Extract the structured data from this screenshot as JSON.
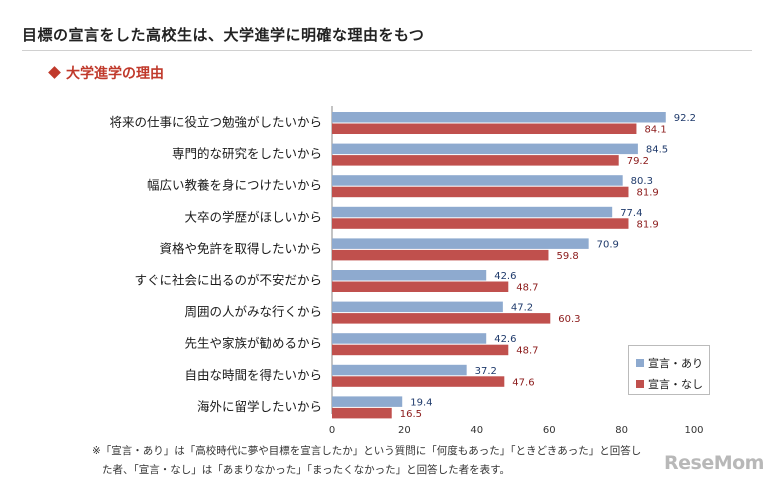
{
  "title": "目標の宣言をした高校生は、大学進学に明確な理由をもつ",
  "subtitle": "大学進学の理由",
  "chart_data": {
    "type": "bar",
    "orientation": "horizontal",
    "categories": [
      "将来の仕事に役立つ勉強がしたいから",
      "専門的な研究をしたいから",
      "幅広い教養を身につけたいから",
      "大卒の学歴がほしいから",
      "資格や免許を取得したいから",
      "すぐに社会に出るのが不安だから",
      "周囲の人がみな行くから",
      "先生や家族が勧めるから",
      "自由な時間を得たいから",
      "海外に留学したいから"
    ],
    "series": [
      {
        "name": "宣言・あり",
        "color": "#8eaacf",
        "values": [
          92.2,
          84.5,
          80.3,
          77.4,
          70.9,
          42.6,
          47.2,
          42.6,
          37.2,
          19.4
        ]
      },
      {
        "name": "宣言・なし",
        "color": "#c0504d",
        "values": [
          84.1,
          79.2,
          81.9,
          81.9,
          59.8,
          48.7,
          60.3,
          48.7,
          47.6,
          16.5
        ]
      }
    ],
    "xlim": [
      0,
      100
    ],
    "xticks": [
      "0",
      "20",
      "40",
      "60",
      "80",
      "100"
    ],
    "legend_position": "bottom-right",
    "grid": false
  },
  "footnote": {
    "line1": "※「宣言・あり」は「高校時代に夢や目標を宣言したか」という質問に「何度もあった」「ときどきあった」と回答し",
    "line2": "た者、「宣言・なし」は「あまりなかった」「まったくなかった」と回答した者を表す。"
  },
  "logo": "ReseMom"
}
